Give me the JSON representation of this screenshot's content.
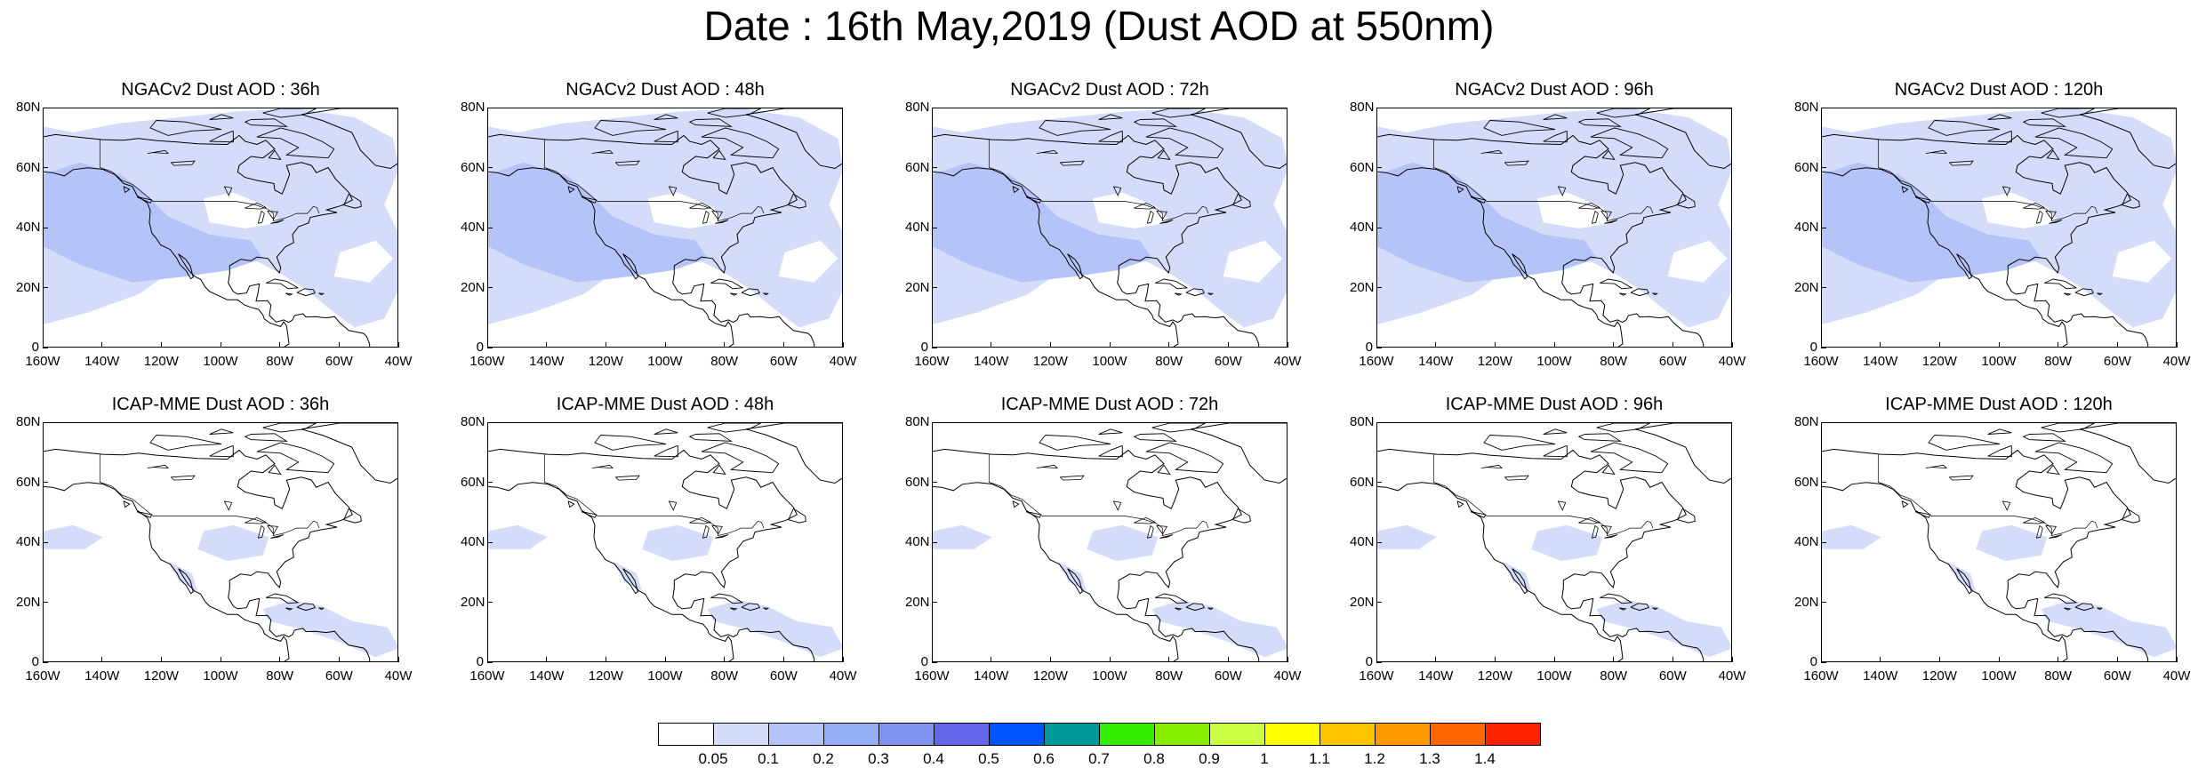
{
  "title": "Date : 16th May,2019 (Dust AOD at 550nm)",
  "axes": {
    "y_ticks": [
      "80N",
      "60N",
      "40N",
      "20N",
      "0"
    ],
    "x_ticks": [
      "160W",
      "140W",
      "120W",
      "100W",
      "80W",
      "60W",
      "40W"
    ],
    "lon_range": [
      -160,
      -40
    ],
    "lat_range": [
      0,
      80
    ]
  },
  "panels": [
    {
      "title": "NGACv2 Dust AOD : 36h",
      "model": "NGACv2",
      "lead": "36h"
    },
    {
      "title": "NGACv2 Dust AOD : 48h",
      "model": "NGACv2",
      "lead": "48h"
    },
    {
      "title": "NGACv2 Dust AOD : 72h",
      "model": "NGACv2",
      "lead": "72h"
    },
    {
      "title": "NGACv2 Dust AOD : 96h",
      "model": "NGACv2",
      "lead": "96h"
    },
    {
      "title": "NGACv2 Dust AOD : 120h",
      "model": "NGACv2",
      "lead": "120h"
    },
    {
      "title": "ICAP-MME Dust AOD : 36h",
      "model": "ICAP-MME",
      "lead": "36h"
    },
    {
      "title": "ICAP-MME Dust AOD : 48h",
      "model": "ICAP-MME",
      "lead": "48h"
    },
    {
      "title": "ICAP-MME Dust AOD : 72h",
      "model": "ICAP-MME",
      "lead": "72h"
    },
    {
      "title": "ICAP-MME Dust AOD : 96h",
      "model": "ICAP-MME",
      "lead": "96h"
    },
    {
      "title": "ICAP-MME Dust AOD : 120h",
      "model": "ICAP-MME",
      "lead": "120h"
    }
  ],
  "colorbar": {
    "labels": [
      "0.05",
      "0.1",
      "0.2",
      "0.3",
      "0.4",
      "0.5",
      "0.6",
      "0.7",
      "0.8",
      "0.9",
      "1",
      "1.1",
      "1.2",
      "1.3",
      "1.4"
    ],
    "colors": [
      "#ffffff",
      "#d4dcfa",
      "#b5c4f8",
      "#95aef5",
      "#7f93ef",
      "#6366e8",
      "#0054ff",
      "#009999",
      "#33ee00",
      "#88ee00",
      "#ccff44",
      "#ffff00",
      "#ffc400",
      "#ff9900",
      "#ff6600",
      "#ff2200"
    ]
  },
  "map_style": {
    "coast_color": "#000000",
    "ngac_shades": [
      "#d4dcfa",
      "#b5c4f8"
    ],
    "icap_shade": "#d4dcfa"
  }
}
